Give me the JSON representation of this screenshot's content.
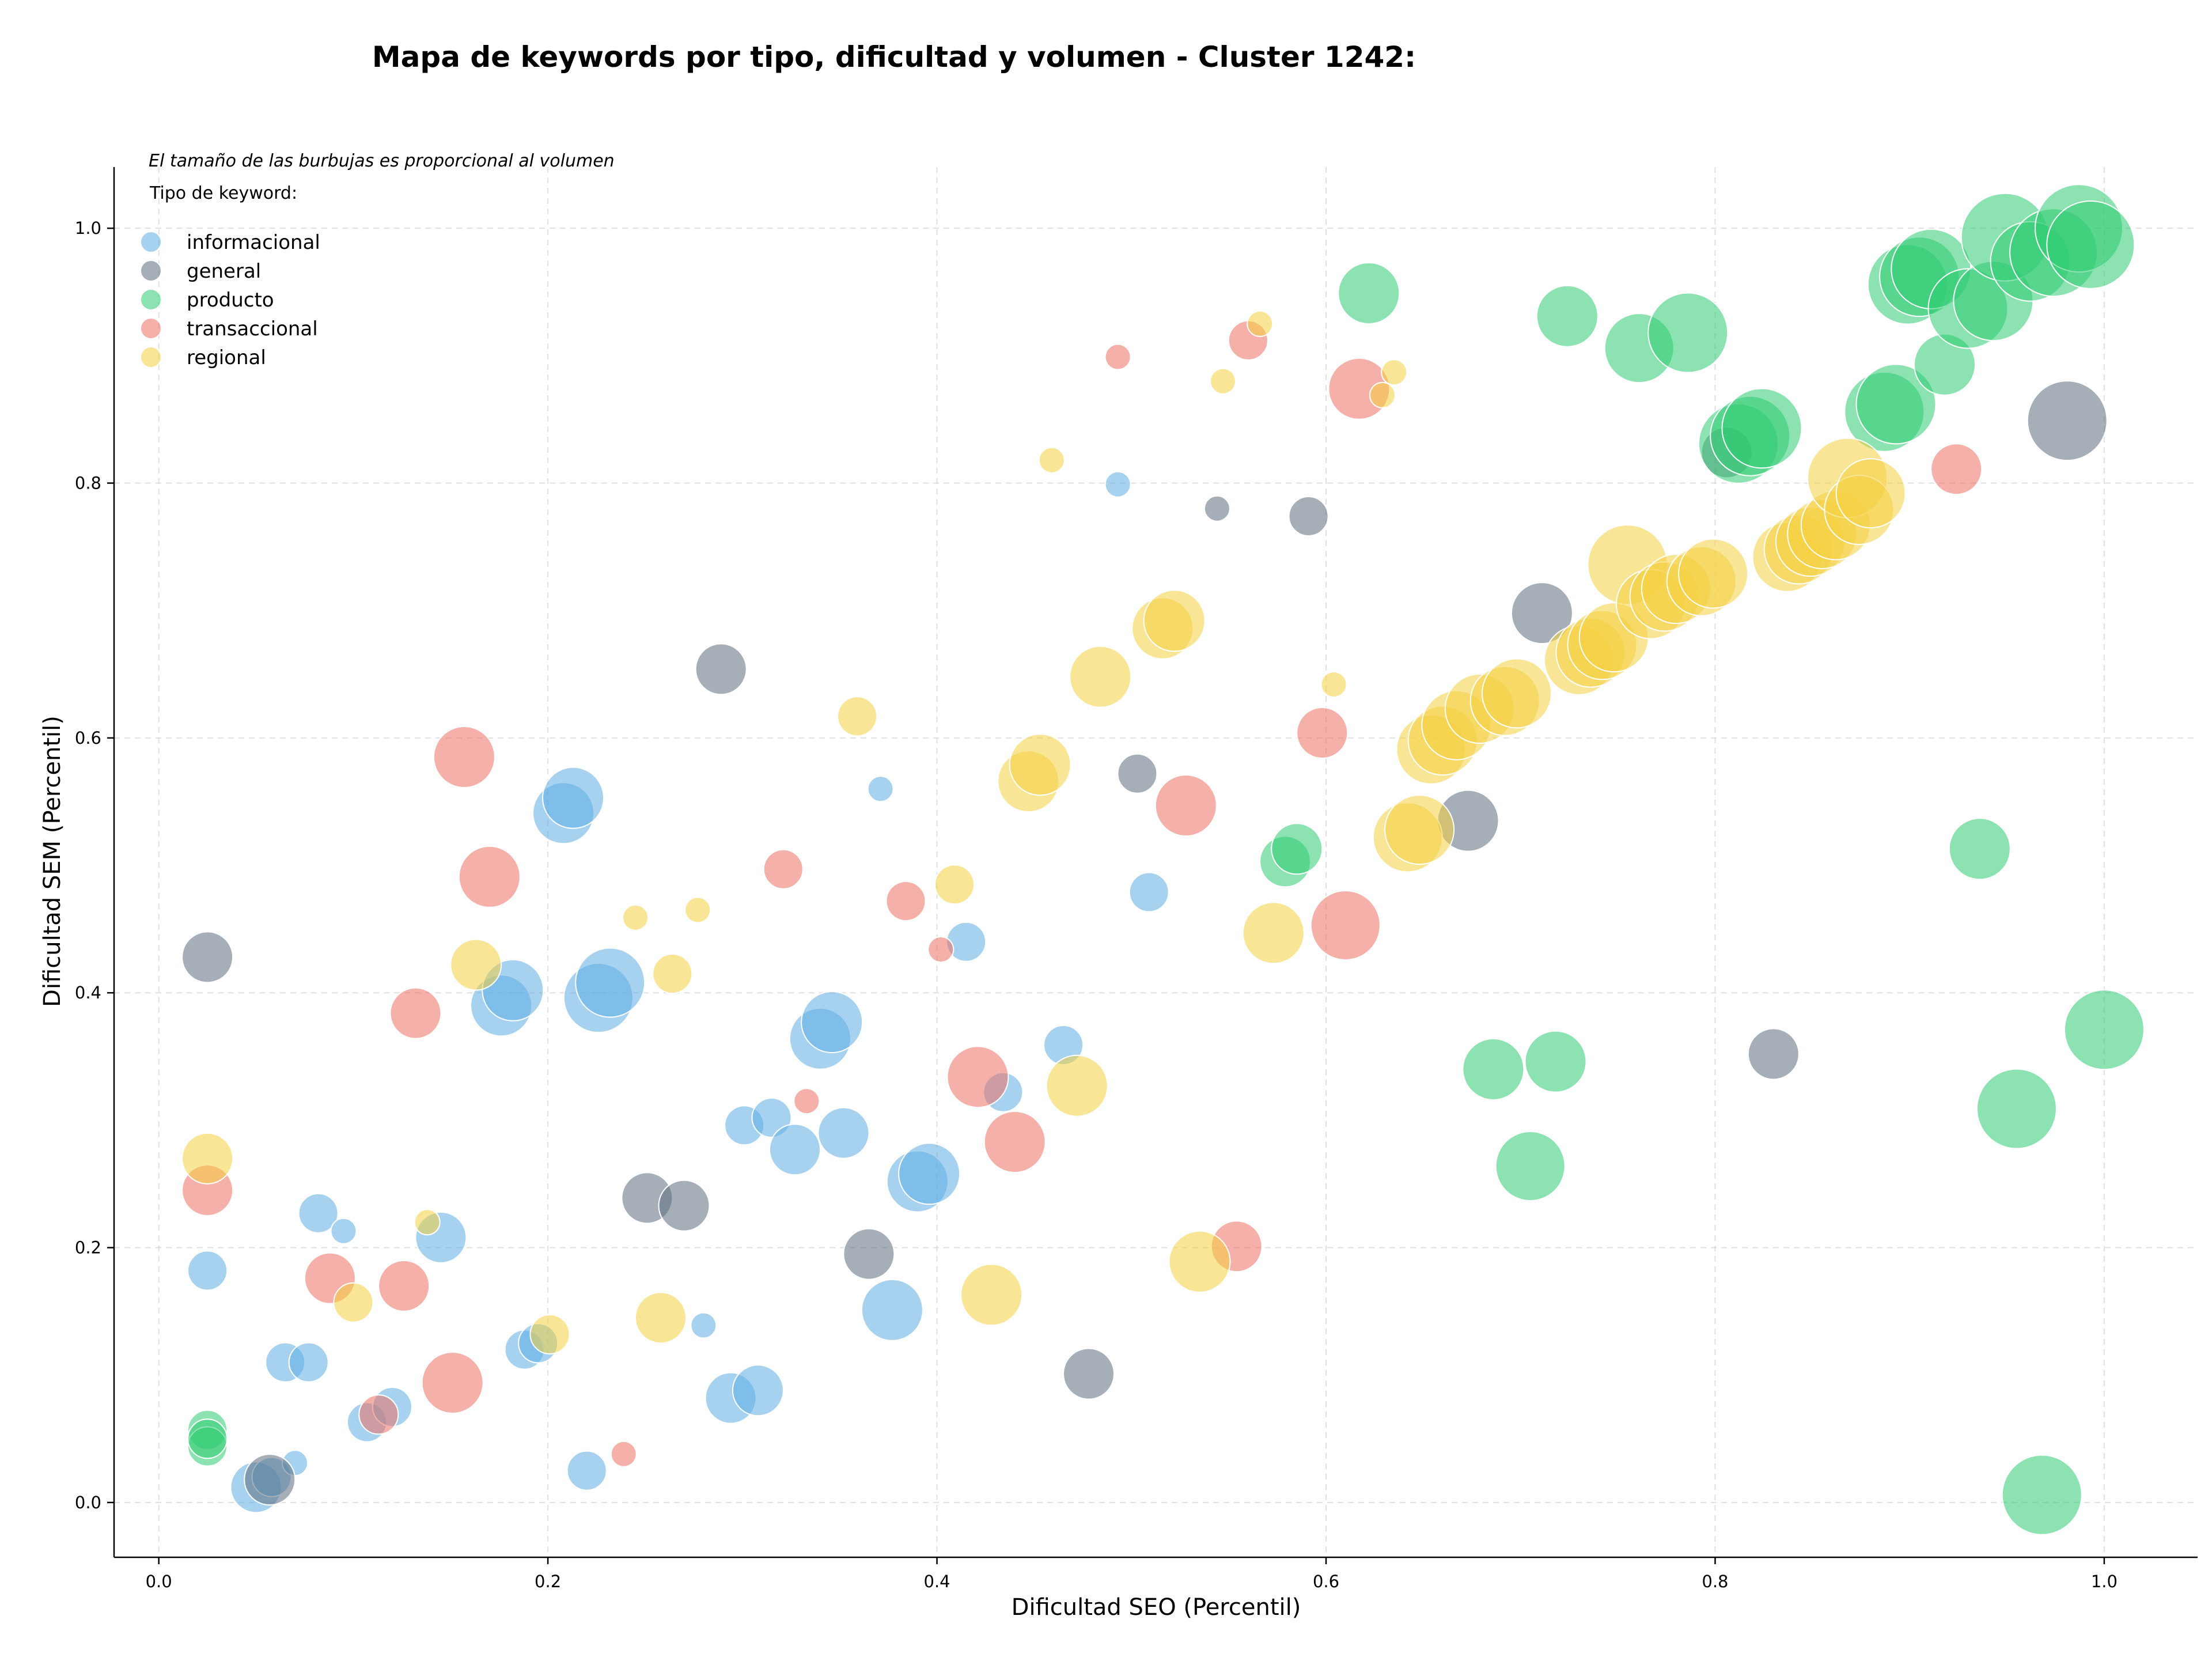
{
  "chart_data": {
    "type": "scatter",
    "title": "Mapa de keywords por tipo, dificultad y volumen - Cluster 1242:",
    "xlabel": "Dificultad SEO (Percentil)",
    "ylabel": "Dificultad SEM (Percentil)",
    "note": "El tamaño de las burbujas es proporcional al volumen",
    "legend_title": "Tipo de keyword:",
    "legend_position": "top-left",
    "grid": true,
    "xlim": [
      -0.023,
      1.048
    ],
    "ylim": [
      -0.043,
      1.048
    ],
    "x_ticks": [
      0.0,
      0.2,
      0.4,
      0.6,
      0.8,
      1.0
    ],
    "y_ticks": [
      0.0,
      0.2,
      0.4,
      0.6,
      0.8,
      1.0
    ],
    "x_tick_labels": [
      "0.0",
      "0.2",
      "0.4",
      "0.6",
      "0.8",
      "1.0"
    ],
    "y_tick_labels": [
      "0.0",
      "0.2",
      "0.4",
      "0.6",
      "0.8",
      "1.0"
    ],
    "series": [
      {
        "name": "informacional",
        "color": "#5dade2",
        "points": [
          [
            0.025,
            0.182,
            2
          ],
          [
            0.05,
            0.012,
            3
          ],
          [
            0.058,
            0.02,
            2
          ],
          [
            0.065,
            0.11,
            2
          ],
          [
            0.07,
            0.031,
            1
          ],
          [
            0.077,
            0.11,
            2
          ],
          [
            0.082,
            0.227,
            2
          ],
          [
            0.095,
            0.213,
            1
          ],
          [
            0.107,
            0.063,
            2
          ],
          [
            0.12,
            0.075,
            2
          ],
          [
            0.145,
            0.208,
            3
          ],
          [
            0.176,
            0.39,
            4
          ],
          [
            0.182,
            0.402,
            4
          ],
          [
            0.188,
            0.12,
            2
          ],
          [
            0.195,
            0.125,
            2
          ],
          [
            0.208,
            0.541,
            4
          ],
          [
            0.213,
            0.553,
            4
          ],
          [
            0.22,
            0.025,
            2
          ],
          [
            0.226,
            0.396,
            5
          ],
          [
            0.232,
            0.408,
            5
          ],
          [
            0.28,
            0.139,
            1
          ],
          [
            0.294,
            0.082,
            3
          ],
          [
            0.301,
            0.296,
            2
          ],
          [
            0.308,
            0.088,
            3
          ],
          [
            0.315,
            0.302,
            2
          ],
          [
            0.327,
            0.277,
            3
          ],
          [
            0.34,
            0.364,
            4
          ],
          [
            0.346,
            0.377,
            4
          ],
          [
            0.352,
            0.29,
            3
          ],
          [
            0.371,
            0.56,
            1
          ],
          [
            0.377,
            0.151,
            4
          ],
          [
            0.39,
            0.252,
            4
          ],
          [
            0.396,
            0.258,
            4
          ],
          [
            0.415,
            0.44,
            2
          ],
          [
            0.434,
            0.322,
            2
          ],
          [
            0.465,
            0.359,
            2
          ],
          [
            0.493,
            0.799,
            1
          ],
          [
            0.509,
            0.479,
            2
          ]
        ]
      },
      {
        "name": "general",
        "color": "#5d6d7e",
        "points": [
          [
            0.025,
            0.428,
            3
          ],
          [
            0.057,
            0.018,
            3
          ],
          [
            0.251,
            0.239,
            3
          ],
          [
            0.27,
            0.233,
            3
          ],
          [
            0.289,
            0.654,
            3
          ],
          [
            0.365,
            0.195,
            3
          ],
          [
            0.478,
            0.101,
            3
          ],
          [
            0.503,
            0.572,
            2
          ],
          [
            0.544,
            0.78,
            1
          ],
          [
            0.591,
            0.774,
            2
          ],
          [
            0.673,
            0.535,
            4
          ],
          [
            0.711,
            0.698,
            4
          ],
          [
            0.806,
            0.824,
            3
          ],
          [
            0.83,
            0.352,
            3
          ],
          [
            0.981,
            0.849,
            6
          ]
        ]
      },
      {
        "name": "producto",
        "color": "#2ecc71",
        "points": [
          [
            0.025,
            0.057,
            2
          ],
          [
            0.025,
            0.044,
            2
          ],
          [
            0.025,
            0.05,
            2
          ],
          [
            0.579,
            0.503,
            3
          ],
          [
            0.585,
            0.513,
            3
          ],
          [
            0.622,
            0.949,
            4
          ],
          [
            0.686,
            0.34,
            4
          ],
          [
            0.705,
            0.264,
            5
          ],
          [
            0.718,
            0.346,
            4
          ],
          [
            0.724,
            0.931,
            4
          ],
          [
            0.761,
            0.906,
            5
          ],
          [
            0.786,
            0.918,
            6
          ],
          [
            0.812,
            0.831,
            6
          ],
          [
            0.818,
            0.837,
            6
          ],
          [
            0.824,
            0.843,
            6
          ],
          [
            0.887,
            0.856,
            6
          ],
          [
            0.893,
            0.862,
            6
          ],
          [
            0.899,
            0.956,
            6
          ],
          [
            0.905,
            0.962,
            6
          ],
          [
            0.911,
            0.968,
            6
          ],
          [
            0.918,
            0.893,
            4
          ],
          [
            0.93,
            0.937,
            6
          ],
          [
            0.936,
            0.513,
            4
          ],
          [
            0.943,
            0.943,
            6
          ],
          [
            0.949,
            0.993,
            7
          ],
          [
            0.955,
            0.309,
            6
          ],
          [
            0.962,
            0.974,
            6
          ],
          [
            0.968,
            0.006,
            6
          ],
          [
            0.974,
            0.981,
            7
          ],
          [
            0.987,
            1.0,
            7
          ],
          [
            0.993,
            0.987,
            7
          ],
          [
            1.0,
            0.371,
            6
          ]
        ]
      },
      {
        "name": "transaccional",
        "color": "#ec7063",
        "points": [
          [
            0.025,
            0.245,
            3
          ],
          [
            0.088,
            0.176,
            3
          ],
          [
            0.113,
            0.069,
            2
          ],
          [
            0.126,
            0.17,
            3
          ],
          [
            0.132,
            0.384,
            3
          ],
          [
            0.151,
            0.094,
            4
          ],
          [
            0.157,
            0.585,
            4
          ],
          [
            0.17,
            0.491,
            4
          ],
          [
            0.239,
            0.038,
            1
          ],
          [
            0.321,
            0.497,
            2
          ],
          [
            0.333,
            0.315,
            1
          ],
          [
            0.384,
            0.472,
            2
          ],
          [
            0.402,
            0.434,
            1
          ],
          [
            0.421,
            0.334,
            4
          ],
          [
            0.44,
            0.283,
            4
          ],
          [
            0.493,
            0.899,
            1
          ],
          [
            0.528,
            0.547,
            4
          ],
          [
            0.554,
            0.201,
            3
          ],
          [
            0.56,
            0.912,
            2
          ],
          [
            0.598,
            0.604,
            3
          ],
          [
            0.61,
            0.453,
            5
          ],
          [
            0.617,
            0.874,
            4
          ],
          [
            0.924,
            0.811,
            3
          ]
        ]
      },
      {
        "name": "regional",
        "color": "#f4d03f",
        "points": [
          [
            0.025,
            0.27,
            3
          ],
          [
            0.1,
            0.157,
            2
          ],
          [
            0.138,
            0.22,
            1
          ],
          [
            0.163,
            0.422,
            3
          ],
          [
            0.201,
            0.132,
            2
          ],
          [
            0.245,
            0.459,
            1
          ],
          [
            0.258,
            0.145,
            3
          ],
          [
            0.264,
            0.415,
            2
          ],
          [
            0.277,
            0.465,
            1
          ],
          [
            0.359,
            0.617,
            2
          ],
          [
            0.409,
            0.485,
            2
          ],
          [
            0.428,
            0.163,
            4
          ],
          [
            0.447,
            0.566,
            4
          ],
          [
            0.453,
            0.579,
            4
          ],
          [
            0.459,
            0.818,
            1
          ],
          [
            0.472,
            0.327,
            4
          ],
          [
            0.484,
            0.648,
            4
          ],
          [
            0.516,
            0.686,
            4
          ],
          [
            0.522,
            0.692,
            4
          ],
          [
            0.535,
            0.189,
            4
          ],
          [
            0.547,
            0.88,
            1
          ],
          [
            0.566,
            0.925,
            1
          ],
          [
            0.573,
            0.447,
            4
          ],
          [
            0.604,
            0.642,
            1
          ],
          [
            0.629,
            0.869,
            1
          ],
          [
            0.635,
            0.887,
            1
          ],
          [
            0.642,
            0.522,
            5
          ],
          [
            0.648,
            0.528,
            5
          ],
          [
            0.654,
            0.591,
            5
          ],
          [
            0.66,
            0.598,
            5
          ],
          [
            0.667,
            0.61,
            5
          ],
          [
            0.679,
            0.623,
            5
          ],
          [
            0.692,
            0.629,
            5
          ],
          [
            0.698,
            0.635,
            5
          ],
          [
            0.73,
            0.661,
            5
          ],
          [
            0.736,
            0.667,
            5
          ],
          [
            0.742,
            0.673,
            5
          ],
          [
            0.748,
            0.679,
            5
          ],
          [
            0.755,
            0.736,
            6
          ],
          [
            0.767,
            0.705,
            5
          ],
          [
            0.774,
            0.711,
            5
          ],
          [
            0.78,
            0.717,
            5
          ],
          [
            0.793,
            0.723,
            5
          ],
          [
            0.799,
            0.729,
            5
          ],
          [
            0.837,
            0.742,
            5
          ],
          [
            0.843,
            0.748,
            5
          ],
          [
            0.849,
            0.754,
            5
          ],
          [
            0.855,
            0.76,
            5
          ],
          [
            0.862,
            0.767,
            5
          ],
          [
            0.868,
            0.804,
            6
          ],
          [
            0.874,
            0.779,
            5
          ],
          [
            0.88,
            0.792,
            5
          ]
        ]
      }
    ]
  }
}
